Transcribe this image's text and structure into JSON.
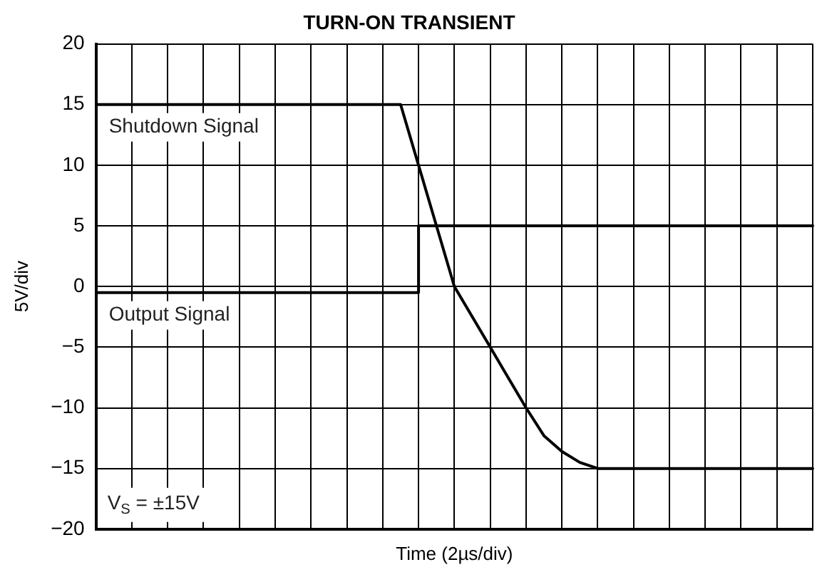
{
  "chart_data": {
    "type": "line",
    "title": "TURN-ON TRANSIENT",
    "xlabel": "Time (2µs/div)",
    "ylabel": "5V/div",
    "annotations": [
      "V$_{S}$ = ±15V"
    ],
    "categories": [
      null,
      null,
      null,
      null,
      null,
      null,
      null,
      null,
      null,
      null,
      null,
      null,
      null,
      null,
      null,
      null,
      null,
      null,
      null,
      null,
      null,
      null,
      null,
      null,
      null,
      null,
      null,
      null,
      null,
      null,
      null,
      null,
      null,
      null,
      null,
      null,
      null,
      null,
      null,
      null,
      null
    ],
    "series": [
      {
        "name": "Shutdown Signal",
        "color": "#000000",
        "values": [
          15,
          15,
          15,
          15,
          15,
          15,
          15,
          15,
          15,
          15,
          15,
          15,
          15,
          15,
          15,
          15,
          15,
          15,
          10,
          5,
          0,
          -2.5,
          -5,
          -7.5,
          -10,
          -12.3,
          -13.6,
          -14.5,
          -15,
          -15,
          -15,
          -15,
          -15,
          -15,
          -15,
          -15,
          -15,
          -15,
          -15,
          -15,
          -15
        ]
      },
      {
        "name": "Output Signal",
        "type": "step",
        "color": "#000000",
        "values": [
          -0.5,
          -0.5,
          -0.5,
          -0.5,
          -0.5,
          -0.5,
          -0.5,
          -0.5,
          -0.5,
          -0.5,
          -0.5,
          -0.5,
          -0.5,
          -0.5,
          -0.5,
          -0.5,
          -0.5,
          -0.5,
          5,
          5,
          5,
          5,
          5,
          5,
          5,
          5,
          5,
          5,
          5,
          5,
          5,
          5,
          5,
          5,
          5,
          5,
          5,
          5,
          5,
          5,
          5
        ]
      }
    ],
    "ylim": [
      -20,
      20
    ],
    "yticks": [
      {
        "value": -20,
        "label": "−20"
      },
      {
        "value": -15,
        "label": "−15"
      },
      {
        "value": -10,
        "label": "−10"
      },
      {
        "value": -5,
        "label": "−5"
      },
      {
        "value": 0,
        "label": "0"
      },
      {
        "value": 5,
        "label": "5"
      },
      {
        "value": 10,
        "label": "10"
      },
      {
        "value": 15,
        "label": "15"
      },
      {
        "value": 20,
        "label": "20"
      }
    ],
    "grid": true,
    "legend": false,
    "marker": "none",
    "line_style": "solid",
    "tick_labels": "y"
  }
}
